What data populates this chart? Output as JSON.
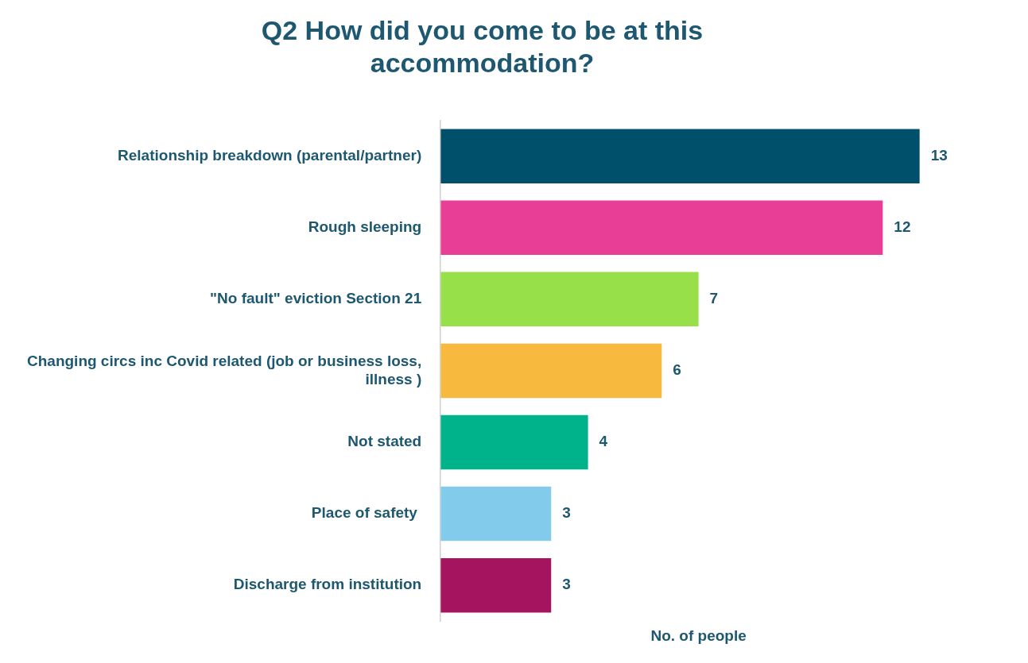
{
  "chart_data": {
    "type": "bar",
    "orientation": "horizontal",
    "title": "Q2 How did you come to be at this accommodation?",
    "categories": [
      "Relationship breakdown (parental/partner)",
      "Rough sleeping",
      "\"No fault\" eviction Section 21",
      "Changing circs inc Covid related (job or business loss, illness )",
      "Not stated",
      "Place of safety ",
      "Discharge from institution"
    ],
    "values": [
      13,
      12,
      7,
      6,
      4,
      3,
      3
    ],
    "colors": [
      "#004f6b",
      "#e83e96",
      "#98e04a",
      "#f7b93e",
      "#00b38a",
      "#82cbeb",
      "#a5145e"
    ],
    "xlabel": "No. of people",
    "tick_labels": "y",
    "data_labels": true,
    "grid": false,
    "legend": false
  }
}
